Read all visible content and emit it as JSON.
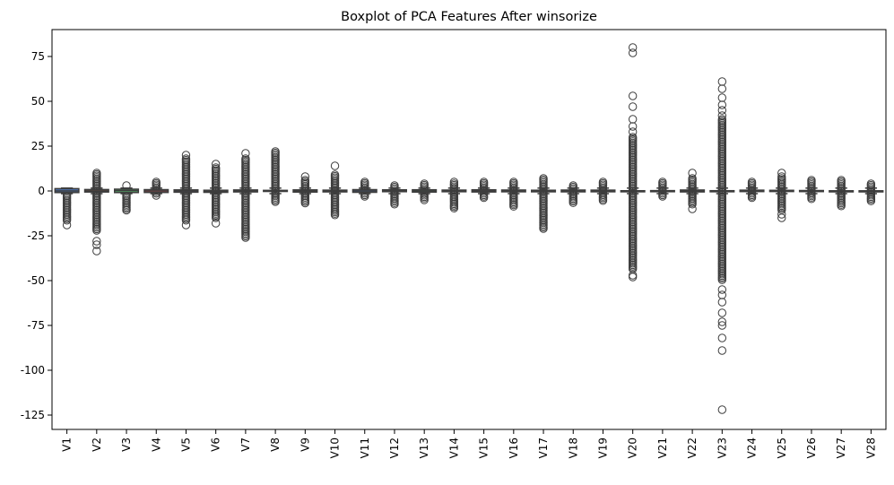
{
  "chart_data": {
    "type": "boxplot",
    "title": "Boxplot of PCA Features After winsorize",
    "xlabel": "",
    "ylabel": "",
    "ylim": [
      -133,
      90
    ],
    "yticks": [
      75,
      50,
      25,
      0,
      -25,
      -50,
      -75,
      -100,
      -125
    ],
    "grid": false,
    "categories": [
      "V1",
      "V2",
      "V3",
      "V4",
      "V5",
      "V6",
      "V7",
      "V8",
      "V9",
      "V10",
      "V11",
      "V12",
      "V13",
      "V14",
      "V15",
      "V16",
      "V17",
      "V18",
      "V19",
      "V20",
      "V21",
      "V22",
      "V23",
      "V24",
      "V25",
      "V26",
      "V27",
      "V28"
    ],
    "colors": [
      "#4c72b0",
      "#dd8452",
      "#55a868",
      "#c44e52",
      "#8172b3",
      "#937860",
      "#da8bc3",
      "#8c8c8c",
      "#ccb974",
      "#64b5cd",
      "#4c72b0",
      "#dd8452",
      "#55a868",
      "#c44e52",
      "#8172b3",
      "#937860",
      "#da8bc3",
      "#8c8c8c",
      "#ccb974",
      "#64b5cd",
      "#4c72b0",
      "#dd8452",
      "#55a868",
      "#c44e52",
      "#8172b3",
      "#937860",
      "#da8bc3",
      "#8c8c8c"
    ],
    "boxes": [
      {
        "q1": -0.9,
        "median": -0.02,
        "q3": 1.3,
        "wlo": -1.5,
        "whi": 1.6,
        "outliers_range": [
          -17,
          -2
        ],
        "extremes": [
          -19
        ]
      },
      {
        "q1": -0.6,
        "median": 0.07,
        "q3": 0.8,
        "wlo": -1.5,
        "whi": 1.6,
        "outliers_range": [
          -22,
          10
        ],
        "extremes": [
          -28,
          -30,
          -33.5
        ]
      },
      {
        "q1": -0.9,
        "median": 0.18,
        "q3": 1.0,
        "wlo": -1.5,
        "whi": 1.6,
        "outliers_range": [
          -11,
          -2
        ],
        "extremes": [
          3
        ]
      },
      {
        "q1": -0.85,
        "median": -0.02,
        "q3": 0.74,
        "wlo": -1.5,
        "whi": 1.6,
        "outliers_range": [
          -2,
          5
        ],
        "extremes": [
          -2.5
        ]
      },
      {
        "q1": -0.7,
        "median": -0.05,
        "q3": 0.6,
        "wlo": -1.5,
        "whi": 1.6,
        "outliers_range": [
          -17,
          18
        ],
        "extremes": [
          -19,
          20
        ]
      },
      {
        "q1": -0.77,
        "median": -0.27,
        "q3": 0.4,
        "wlo": -1.5,
        "whi": 1.6,
        "outliers_range": [
          -15,
          13
        ],
        "extremes": [
          -18,
          15
        ]
      },
      {
        "q1": -0.55,
        "median": 0.04,
        "q3": 0.57,
        "wlo": -1.5,
        "whi": 1.6,
        "outliers_range": [
          -26,
          18
        ],
        "extremes": [
          21
        ]
      },
      {
        "q1": -0.2,
        "median": 0.02,
        "q3": 0.33,
        "wlo": -1.5,
        "whi": 1.6,
        "outliers_range": [
          -6,
          22
        ],
        "extremes": []
      },
      {
        "q1": -0.64,
        "median": -0.05,
        "q3": 0.6,
        "wlo": -1.5,
        "whi": 1.6,
        "outliers_range": [
          -7,
          6
        ],
        "extremes": [
          8
        ]
      },
      {
        "q1": -0.53,
        "median": -0.09,
        "q3": 0.45,
        "wlo": -1.5,
        "whi": 1.6,
        "outliers_range": [
          -14,
          9
        ],
        "extremes": [
          14
        ]
      },
      {
        "q1": -0.76,
        "median": -0.03,
        "q3": 0.74,
        "wlo": -1.5,
        "whi": 1.6,
        "outliers_range": [
          -3,
          5
        ],
        "extremes": []
      },
      {
        "q1": -0.4,
        "median": 0.14,
        "q3": 0.62,
        "wlo": -1.5,
        "whi": 1.6,
        "outliers_range": [
          -8,
          3
        ],
        "extremes": []
      },
      {
        "q1": -0.65,
        "median": -0.01,
        "q3": 0.66,
        "wlo": -1.5,
        "whi": 1.6,
        "outliers_range": [
          -4,
          4
        ],
        "extremes": [
          -5
        ]
      },
      {
        "q1": -0.43,
        "median": 0.05,
        "q3": 0.49,
        "wlo": -1.5,
        "whi": 1.6,
        "outliers_range": [
          -10,
          4
        ],
        "extremes": [
          5
        ]
      },
      {
        "q1": -0.58,
        "median": 0.05,
        "q3": 0.65,
        "wlo": -1.5,
        "whi": 1.6,
        "outliers_range": [
          -4,
          5
        ],
        "extremes": []
      },
      {
        "q1": -0.47,
        "median": 0.07,
        "q3": 0.52,
        "wlo": -1.5,
        "whi": 1.6,
        "outliers_range": [
          -9,
          5
        ],
        "extremes": []
      },
      {
        "q1": -0.48,
        "median": -0.07,
        "q3": 0.4,
        "wlo": -1.5,
        "whi": 1.6,
        "outliers_range": [
          -21,
          7
        ],
        "extremes": []
      },
      {
        "q1": -0.5,
        "median": 0.0,
        "q3": 0.5,
        "wlo": -1.5,
        "whi": 1.6,
        "outliers_range": [
          -7,
          3
        ],
        "extremes": []
      },
      {
        "q1": -0.46,
        "median": 0.0,
        "q3": 0.46,
        "wlo": -1.5,
        "whi": 1.6,
        "outliers_range": [
          -6,
          5
        ],
        "extremes": []
      },
      {
        "q1": -0.21,
        "median": -0.06,
        "q3": 0.13,
        "wlo": -1.5,
        "whi": 1.6,
        "outliers_range": [
          -44,
          30
        ],
        "extremes": [
          -48,
          -47,
          33,
          36,
          40,
          47,
          53,
          77,
          80
        ]
      },
      {
        "q1": -0.23,
        "median": -0.03,
        "q3": 0.19,
        "wlo": -1.5,
        "whi": 1.6,
        "outliers_range": [
          -3.5,
          5
        ],
        "extremes": []
      },
      {
        "q1": -0.54,
        "median": 0.01,
        "q3": 0.53,
        "wlo": -1.5,
        "whi": 1.6,
        "outliers_range": [
          -8,
          7
        ],
        "extremes": [
          -10,
          10
        ]
      },
      {
        "q1": -0.16,
        "median": -0.01,
        "q3": 0.15,
        "wlo": -1.5,
        "whi": 1.6,
        "outliers_range": [
          -50,
          40
        ],
        "extremes": [
          -55,
          -58,
          -62,
          -68,
          -73,
          -75,
          -82,
          -89,
          -122,
          42,
          45,
          48,
          52,
          57,
          61
        ]
      },
      {
        "q1": -0.35,
        "median": 0.04,
        "q3": 0.44,
        "wlo": -1.5,
        "whi": 1.6,
        "outliers_range": [
          -4,
          5
        ],
        "extremes": []
      },
      {
        "q1": -0.32,
        "median": 0.02,
        "q3": 0.35,
        "wlo": -1.5,
        "whi": 1.6,
        "outliers_range": [
          -11,
          7
        ],
        "extremes": [
          -15,
          -13,
          8,
          10
        ]
      },
      {
        "q1": -0.33,
        "median": -0.05,
        "q3": 0.24,
        "wlo": -1.5,
        "whi": 1.6,
        "outliers_range": [
          -5,
          6
        ],
        "extremes": []
      },
      {
        "q1": -0.07,
        "median": 0.0,
        "q3": 0.09,
        "wlo": -1.5,
        "whi": 1.6,
        "outliers_range": [
          -9,
          6
        ],
        "extremes": []
      },
      {
        "q1": -0.05,
        "median": 0.01,
        "q3": 0.08,
        "wlo": -1.5,
        "whi": 1.6,
        "outliers_range": [
          -6,
          4
        ],
        "extremes": []
      }
    ]
  }
}
